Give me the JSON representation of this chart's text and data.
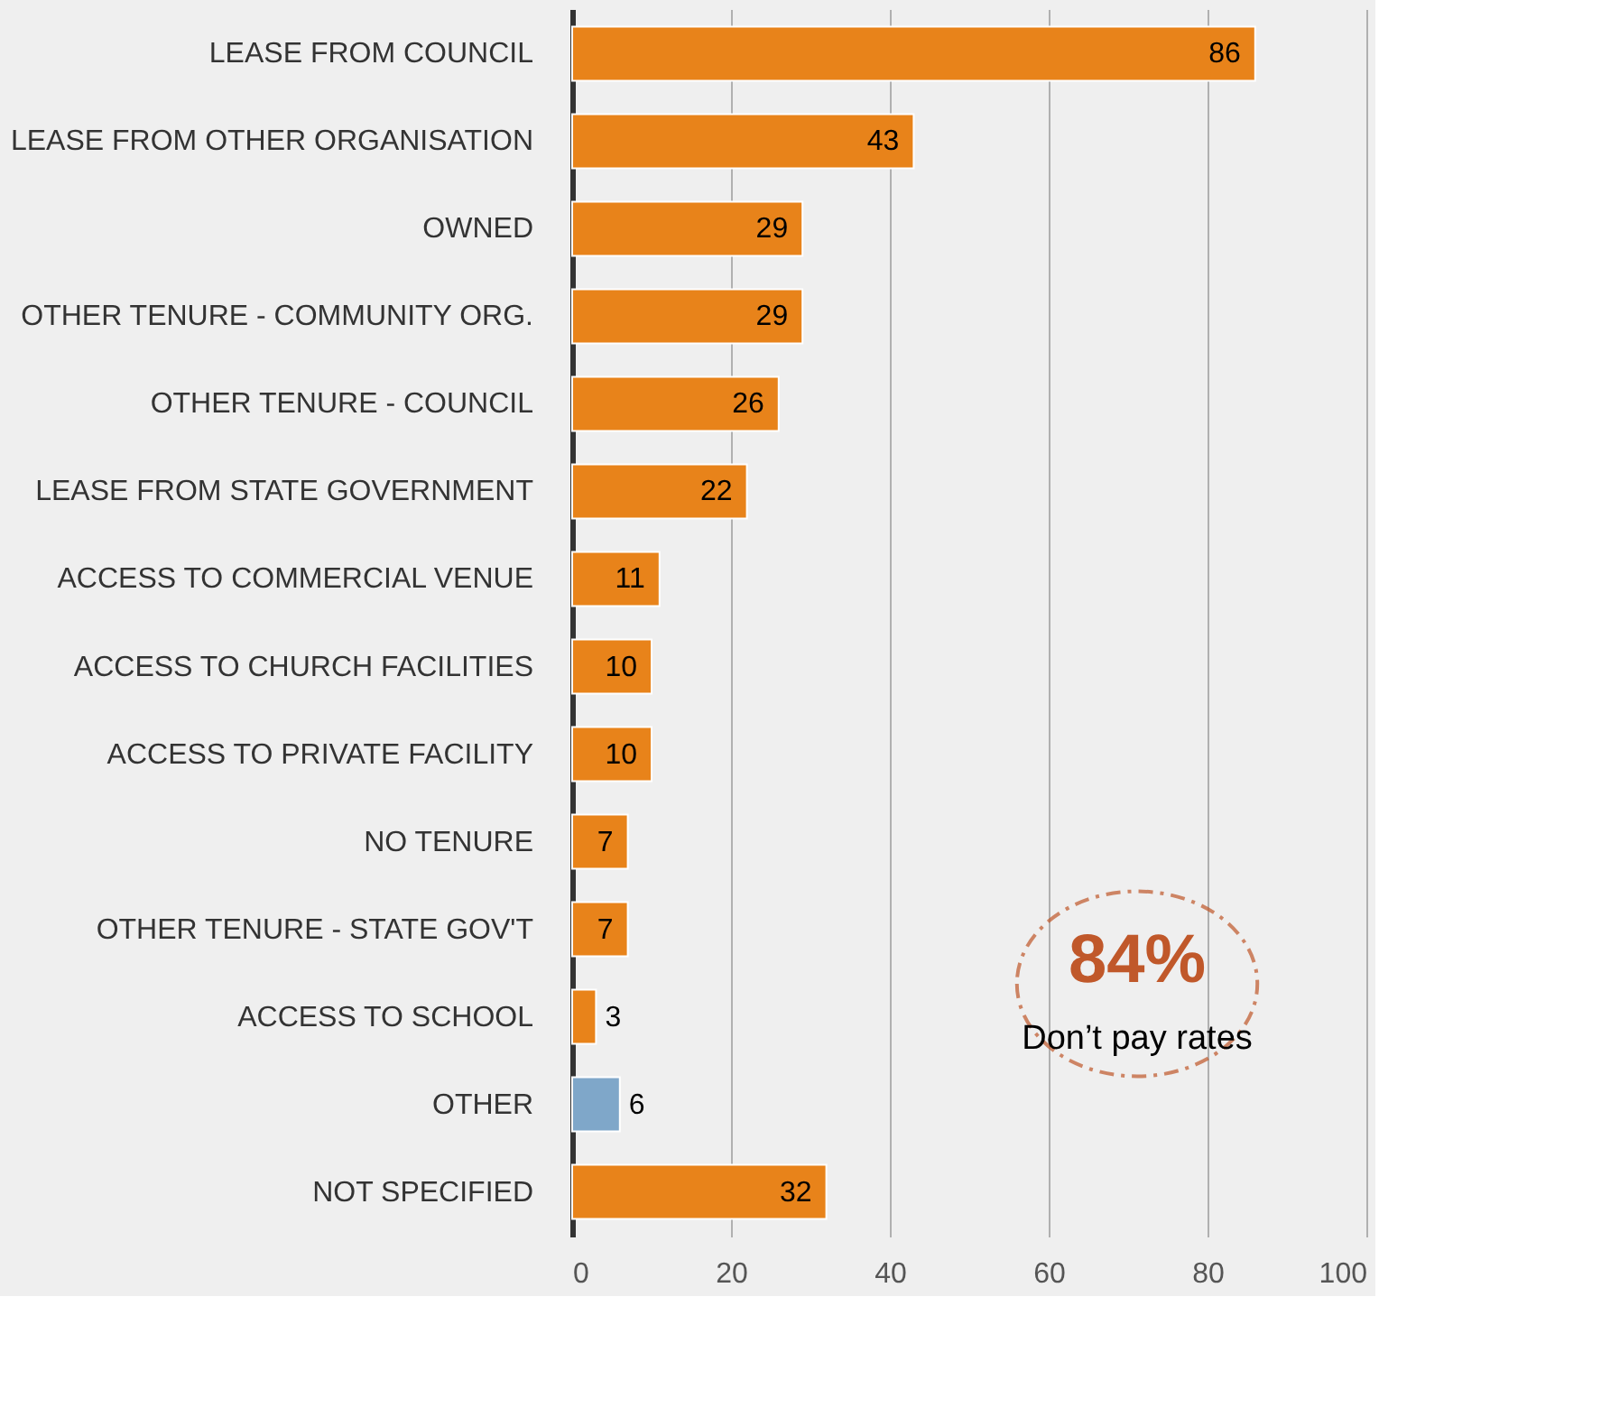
{
  "chart_data": {
    "type": "bar",
    "orientation": "horizontal",
    "categories": [
      "LEASE FROM COUNCIL",
      "LEASE FROM OTHER ORGANISATION",
      "OWNED",
      "OTHER TENURE - COMMUNITY ORG.",
      "OTHER TENURE - COUNCIL",
      "LEASE FROM STATE GOVERNMENT",
      "ACCESS TO COMMERCIAL VENUE",
      "ACCESS TO CHURCH FACILITIES",
      "ACCESS TO PRIVATE FACILITY",
      "NO TENURE",
      "OTHER TENURE - STATE GOV'T",
      "ACCESS TO SCHOOL",
      "OTHER",
      "NOT SPECIFIED"
    ],
    "values": [
      86,
      43,
      29,
      29,
      26,
      22,
      11,
      10,
      10,
      7,
      7,
      3,
      6,
      32
    ],
    "colors": [
      "#e8831a",
      "#e8831a",
      "#e8831a",
      "#e8831a",
      "#e8831a",
      "#e8831a",
      "#e8831a",
      "#e8831a",
      "#e8831a",
      "#e8831a",
      "#e8831a",
      "#e8831a",
      "#7fa7c9",
      "#e8831a"
    ],
    "xlim": [
      0,
      100
    ],
    "xticks": [
      0,
      20,
      40,
      60,
      80,
      100
    ],
    "grid": "x",
    "data_labels": true,
    "annotations": [
      "84%",
      "Don’t pay rates"
    ]
  }
}
